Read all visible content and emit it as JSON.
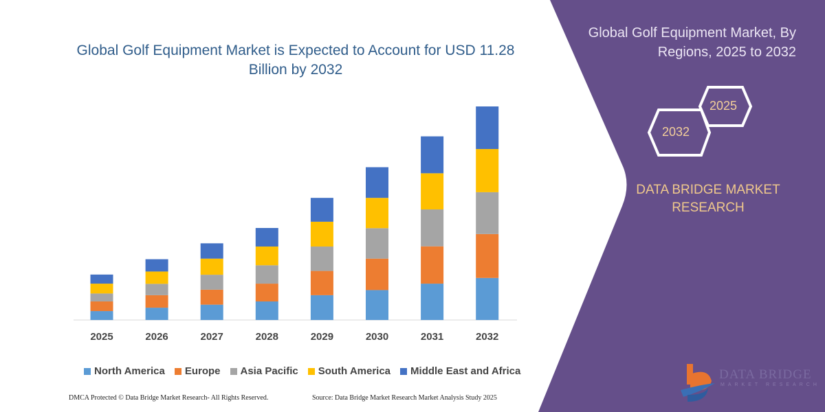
{
  "colors": {
    "panel": "#654f8a",
    "title": "#2f5c8a",
    "gold": "#f0c98c"
  },
  "right_panel": {
    "title": "Global Golf Equipment Market, By Regions, 2025 to 2032",
    "hex_years": [
      "2025",
      "2032"
    ],
    "brand": "DATA BRIDGE MARKET RESEARCH",
    "logo_text": "DATA BRIDGE",
    "logo_sub": "MARKET RESEARCH"
  },
  "footer": {
    "left": "DMCA Protected © Data Bridge Market Research-  All Rights Reserved.",
    "right": "Source: Data Bridge Market Research  Market Analysis Study 2025"
  },
  "chart_data": {
    "type": "bar",
    "stacked": true,
    "title": "Global Golf Equipment Market is Expected to Account for USD 11.28 Billion by 2032",
    "xlabel": "",
    "ylabel": "",
    "categories": [
      "2025",
      "2026",
      "2027",
      "2028",
      "2029",
      "2030",
      "2031",
      "2032"
    ],
    "ylim": [
      0,
      11.28
    ],
    "grid": false,
    "legend": "bottom",
    "series": [
      {
        "name": "North America",
        "color": "#5b9bd5",
        "values": [
          0.47,
          0.65,
          0.81,
          0.98,
          1.31,
          1.58,
          1.92,
          2.22
        ]
      },
      {
        "name": "Europe",
        "color": "#ed7d31",
        "values": [
          0.51,
          0.66,
          0.79,
          0.94,
          1.28,
          1.66,
          1.97,
          2.32
        ]
      },
      {
        "name": "Asia Pacific",
        "color": "#a5a5a5",
        "values": [
          0.42,
          0.6,
          0.79,
          0.97,
          1.29,
          1.61,
          1.95,
          2.21
        ]
      },
      {
        "name": "South America",
        "color": "#ffc000",
        "values": [
          0.52,
          0.65,
          0.85,
          0.99,
          1.31,
          1.6,
          1.91,
          2.28
        ]
      },
      {
        "name": "Middle East and Africa",
        "color": "#4472c4",
        "values": [
          0.48,
          0.65,
          0.81,
          0.98,
          1.26,
          1.62,
          1.95,
          2.25
        ]
      }
    ]
  }
}
